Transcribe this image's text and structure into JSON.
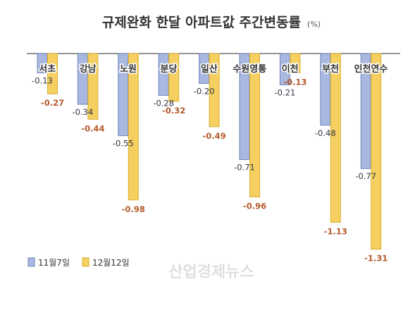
{
  "chart_data": {
    "type": "bar",
    "title": "규제완화 한달 아파트값 주간변동률",
    "unit": "(%)",
    "categories": [
      "서초",
      "강남",
      "노원",
      "분당",
      "일산",
      "수원영통",
      "이천",
      "부천",
      "인천연수"
    ],
    "series": [
      {
        "name": "11월7일",
        "color": "#a8b8e0",
        "values": [
          -0.13,
          -0.34,
          -0.55,
          -0.28,
          -0.2,
          -0.71,
          -0.21,
          -0.48,
          -0.77
        ]
      },
      {
        "name": "12월12일",
        "color": "#f5d060",
        "values": [
          -0.27,
          -0.44,
          -0.98,
          -0.32,
          -0.49,
          -0.96,
          -0.13,
          -1.13,
          -1.31
        ]
      }
    ],
    "value_labels": {
      "a": [
        "-0.13",
        "-0.34",
        "-0.55",
        "-0.28",
        "-0.20",
        "-0.71",
        "-0.21",
        "-0.48",
        "-0.77"
      ],
      "b": [
        "-0.27",
        "-0.44",
        "-0.98",
        "-0.32",
        "-0.49",
        "-0.96",
        "-0.13",
        "-1.13",
        "-1.31"
      ]
    },
    "ylim": [
      -1.31,
      0
    ],
    "grid": false,
    "legend": "bottom-left"
  },
  "watermark": "산업경제뉴스"
}
